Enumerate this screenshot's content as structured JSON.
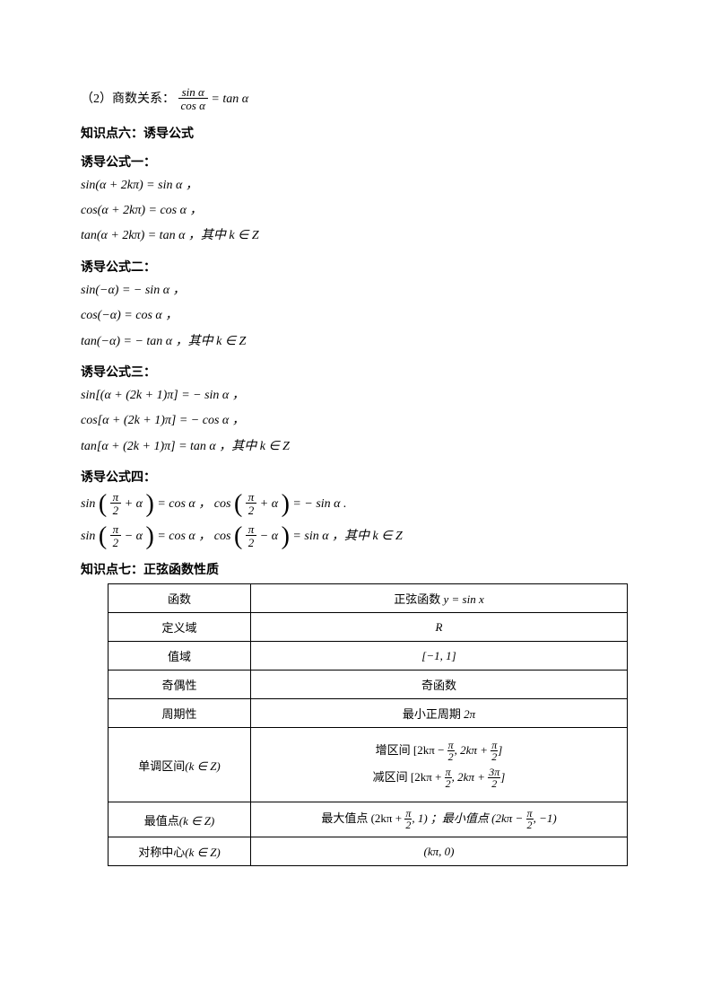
{
  "line_quotient_prefix": "（2）商数关系：",
  "quotient_num": "sin α",
  "quotient_den": "cos α",
  "quotient_eq": " = tan α",
  "heading_six": "知识点六：诱导公式",
  "sub_one": "诱导公式一：",
  "f1a": "sin(α + 2kπ) = sin α ，",
  "f1b": "cos(α + 2kπ) = cos α ，",
  "f1c": "tan(α + 2kπ) = tan α ，其中 k ∈ Z",
  "sub_two": "诱导公式二：",
  "f2a": "sin(−α) = − sin α ，",
  "f2b": "cos(−α) = cos α ，",
  "f2c": "tan(−α) = − tan α ，其中 k ∈ Z",
  "sub_three": "诱导公式三：",
  "f3a": "sin[(α + (2k + 1)π] = − sin α ，",
  "f3b": "cos[α + (2k + 1)π] = − cos α ，",
  "f3c": "tan[α + (2k + 1)π] = tan α ，其中 k ∈ Z",
  "sub_four": "诱导公式四：",
  "f4a_pre": "sin",
  "pi2": "π",
  "two": "2",
  "plus_alpha": " + α",
  "eq_cos": " = cos α ， ",
  "f4a_mid": "cos",
  "eq_neg_sin": " = − sin α .",
  "minus_alpha": " − α",
  "eq_sin": " = sin α ，其中 k ∈ Z",
  "heading_seven": "知识点七：正弦函数性质",
  "table": {
    "r1c1": "函数",
    "r1c2_pre": "正弦函数 ",
    "r1c2_math": "y = sin x",
    "r2c1": "定义域",
    "r2c2": "R",
    "r3c1": "值域",
    "r3c2": "[−1, 1]",
    "r4c1": "奇偶性",
    "r4c2": "奇函数",
    "r5c1": "周期性",
    "r5c2_pre": "最小正周期 ",
    "r5c2_math": "2π",
    "r6c1_pre": "单调区间",
    "kinz": "(k ∈ Z)",
    "r6_inc_pre": "增区间 [2kπ − ",
    "r6_inc_mid": ", 2kπ + ",
    "r6_inc_end": "]",
    "r6_dec_pre": "减区间 [2kπ + ",
    "r6_dec_mid": ", 2kπ + ",
    "three_pi": "3π",
    "r6_dec_end": "]",
    "r7c1": "最值点",
    "r7_max_pre": "最大值点 (2kπ + ",
    "r7_max_end": ", 1) ；最小值点 (2kπ − ",
    "r7_min_end": ", −1)",
    "r8c1": "对称中心",
    "r8c2": "(kπ, 0)"
  }
}
